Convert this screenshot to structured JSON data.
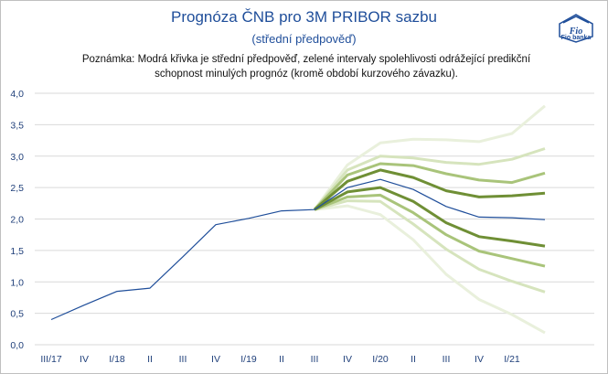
{
  "header": {
    "title": "Prognóza ČNB pro 3M PRIBOR sazbu",
    "subtitle": "(střední předpověď)",
    "note_line1": "Poznámka: Modrá křivka je střední předpověď,  zelené intervaly spolehlivosti odrážející predikční",
    "note_line2": "schopnost minulých prognóz (kromě období kurzového závazku).",
    "logo_text": "Fio banka",
    "logo_mark": "Fio"
  },
  "colors": {
    "central": "#1f4e9a",
    "band_dark": "#6f8f35",
    "band_mid": "#a9c47a",
    "band_light": "#d6e4bd",
    "band_lightest": "#e9f0dc",
    "axis_text": "#1f3f7a"
  },
  "chart_data": {
    "type": "line",
    "categories": [
      "III/17",
      "IV",
      "I/18",
      "II",
      "III",
      "IV",
      "I/19",
      "II",
      "III",
      "IV",
      "I/20",
      "II",
      "III",
      "IV",
      "I/21",
      ""
    ],
    "ylim": [
      0,
      4
    ],
    "yticks": [
      "0,0",
      "0,5",
      "1,0",
      "1,5",
      "2,0",
      "2,5",
      "3,0",
      "3,5",
      "4,0"
    ],
    "grid": true,
    "series": [
      {
        "role": "central",
        "values": [
          0.4,
          0.63,
          0.85,
          0.9,
          1.4,
          1.91,
          2.01,
          2.13,
          2.15,
          2.5,
          2.63,
          2.47,
          2.2,
          2.03,
          2.02,
          1.99
        ]
      },
      {
        "role": "upper-70",
        "values": [
          null,
          null,
          null,
          null,
          null,
          null,
          null,
          null,
          2.15,
          2.6,
          2.78,
          2.66,
          2.45,
          2.35,
          2.37,
          2.41
        ]
      },
      {
        "role": "lower-70",
        "values": [
          null,
          null,
          null,
          null,
          null,
          null,
          null,
          null,
          2.15,
          2.43,
          2.5,
          2.28,
          1.94,
          1.72,
          1.65,
          1.57
        ]
      },
      {
        "role": "upper-90",
        "values": [
          null,
          null,
          null,
          null,
          null,
          null,
          null,
          null,
          2.15,
          2.7,
          2.88,
          2.85,
          2.72,
          2.62,
          2.58,
          2.73
        ]
      },
      {
        "role": "lower-90",
        "values": [
          null,
          null,
          null,
          null,
          null,
          null,
          null,
          null,
          2.15,
          2.35,
          2.38,
          2.1,
          1.75,
          1.49,
          1.37,
          1.25
        ]
      },
      {
        "role": "upper-95",
        "values": [
          null,
          null,
          null,
          null,
          null,
          null,
          null,
          null,
          2.15,
          2.78,
          3.0,
          2.97,
          2.9,
          2.87,
          2.95,
          3.12
        ]
      },
      {
        "role": "lower-95",
        "values": [
          null,
          null,
          null,
          null,
          null,
          null,
          null,
          null,
          2.15,
          2.29,
          2.28,
          1.92,
          1.52,
          1.2,
          1.01,
          0.84
        ]
      },
      {
        "role": "upper-99",
        "values": [
          null,
          null,
          null,
          null,
          null,
          null,
          null,
          null,
          2.15,
          2.86,
          3.21,
          3.27,
          3.26,
          3.23,
          3.36,
          3.8
        ]
      },
      {
        "role": "lower-99",
        "values": [
          null,
          null,
          null,
          null,
          null,
          null,
          null,
          null,
          2.15,
          2.21,
          2.07,
          1.67,
          1.12,
          0.72,
          0.48,
          0.19
        ]
      }
    ]
  }
}
